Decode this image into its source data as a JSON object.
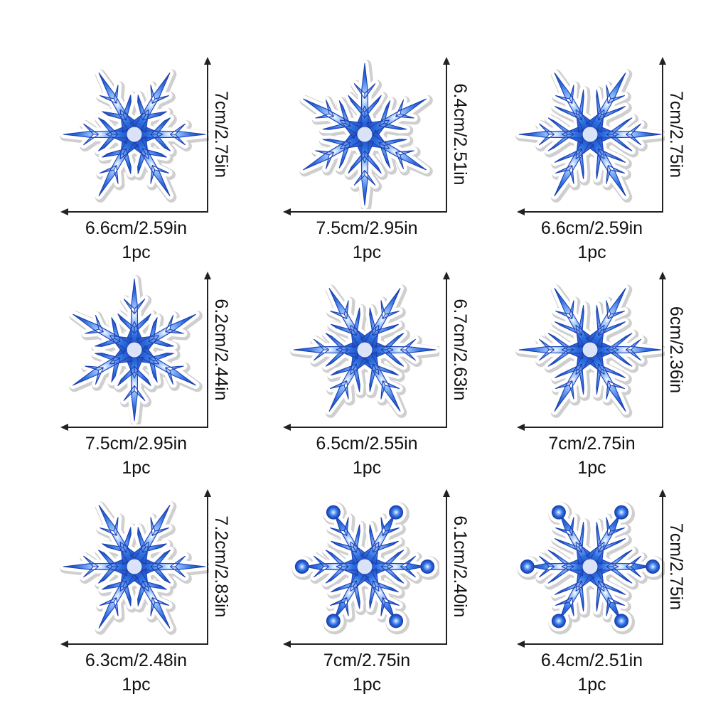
{
  "colors": {
    "flake_dark": "#1a3fb0",
    "flake_mid": "#2f6fe0",
    "flake_light": "#9cc4ff",
    "line": "#222222"
  },
  "items": [
    {
      "width_label": "6.6cm/2.59in",
      "height_label": "7cm/2.75in",
      "quantity": "1pc",
      "icon": "snowflake-icon"
    },
    {
      "width_label": "7.5cm/2.95in",
      "height_label": "6.4cm/2.51in",
      "quantity": "1pc",
      "icon": "snowflake-icon"
    },
    {
      "width_label": "6.6cm/2.59in",
      "height_label": "7cm/2.75in",
      "quantity": "1pc",
      "icon": "snowflake-icon"
    },
    {
      "width_label": "7.5cm/2.95in",
      "height_label": "6.2cm/2.44in",
      "quantity": "1pc",
      "icon": "snowflake-icon"
    },
    {
      "width_label": "6.5cm/2.55in",
      "height_label": "6.7cm/2.63in",
      "quantity": "1pc",
      "icon": "snowflake-icon"
    },
    {
      "width_label": "7cm/2.75in",
      "height_label": "6cm/2.36in",
      "quantity": "1pc",
      "icon": "snowflake-icon"
    },
    {
      "width_label": "6.3cm/2.48in",
      "height_label": "7.2cm/2.83in",
      "quantity": "1pc",
      "icon": "snowflake-icon"
    },
    {
      "width_label": "7cm/2.75in",
      "height_label": "6.1cm/2.40in",
      "quantity": "1pc",
      "icon": "snowflake-icon"
    },
    {
      "width_label": "6.4cm/2.51in",
      "height_label": "7cm/2.75in",
      "quantity": "1pc",
      "icon": "snowflake-icon"
    }
  ]
}
